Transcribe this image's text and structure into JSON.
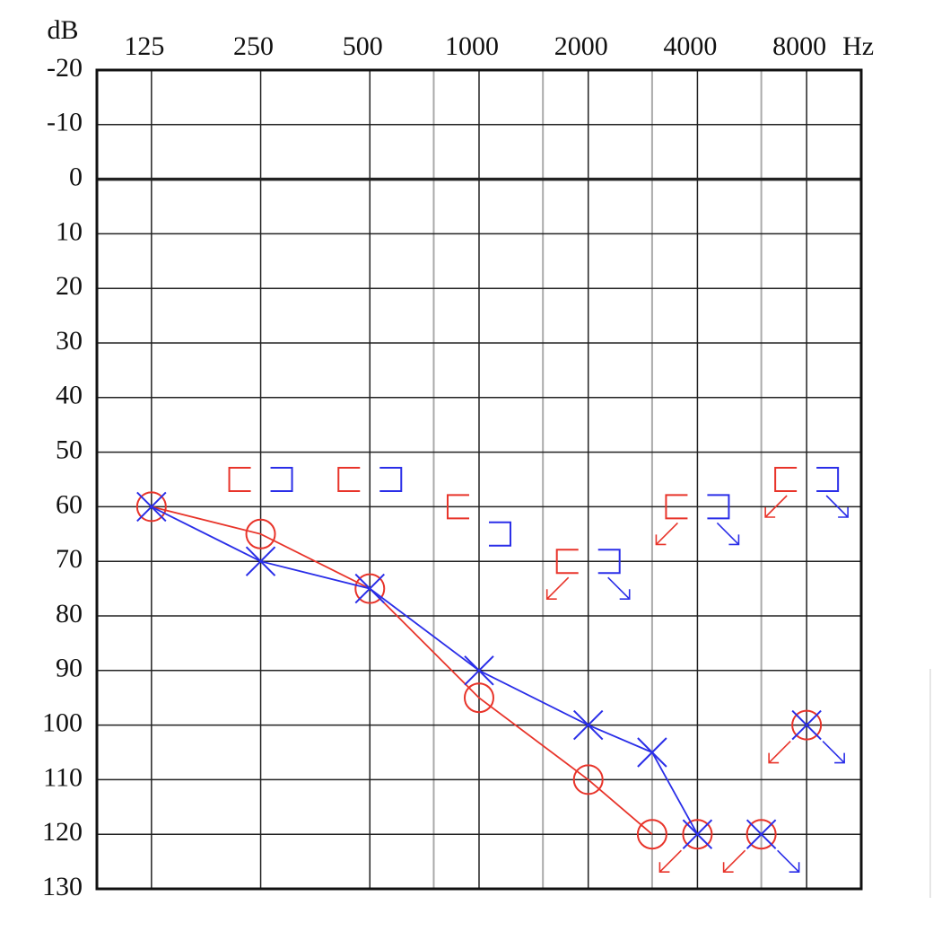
{
  "chart_data": {
    "type": "line",
    "y_label": "dB",
    "x_unit": "Hz",
    "log_x": true,
    "xlim": [
      88.4,
      11314
    ],
    "xticks": [
      125,
      250,
      500,
      1000,
      2000,
      4000,
      8000
    ],
    "x_minor_ticks": [
      750,
      1500,
      3000,
      6000
    ],
    "ylim": [
      -20,
      130
    ],
    "y_inverted": true,
    "yticks": [
      -20,
      -10,
      0,
      10,
      20,
      30,
      40,
      50,
      60,
      70,
      80,
      90,
      100,
      110,
      120,
      130
    ],
    "bold_line": 0,
    "grid": true,
    "series": [
      {
        "color": "#e8342a",
        "marker": "circle",
        "connected": true,
        "no_response": false,
        "x": [
          125,
          250,
          500,
          1000,
          2000,
          3000
        ],
        "values": [
          60,
          65,
          75,
          95,
          110,
          120
        ]
      },
      {
        "color": "#e8342a",
        "marker": "circle",
        "connected": false,
        "no_response": true,
        "x": [
          4000,
          6000,
          8000
        ],
        "values": [
          120,
          120,
          100
        ]
      },
      {
        "color": "#2a2ee8",
        "marker": "x",
        "connected": true,
        "no_response": false,
        "x": [
          125,
          250,
          500,
          1000,
          2000,
          3000,
          4000
        ],
        "values": [
          60,
          70,
          75,
          90,
          100,
          105,
          120
        ]
      },
      {
        "color": "#2a2ee8",
        "marker": "x",
        "connected": false,
        "no_response": true,
        "x": [
          6000,
          8000
        ],
        "values": [
          120,
          100
        ]
      },
      {
        "color": "#e8342a",
        "marker": "bracket-left",
        "connected": false,
        "no_response": false,
        "x": [
          250,
          500,
          1000
        ],
        "values": [
          55,
          55,
          60
        ]
      },
      {
        "color": "#e8342a",
        "marker": "bracket-left",
        "connected": false,
        "no_response": true,
        "x": [
          2000,
          4000,
          8000
        ],
        "values": [
          70,
          60,
          55
        ]
      },
      {
        "color": "#2a2ee8",
        "marker": "bracket-right",
        "connected": false,
        "no_response": false,
        "x": [
          250,
          500,
          1000
        ],
        "values": [
          55,
          55,
          65
        ]
      },
      {
        "color": "#2a2ee8",
        "marker": "bracket-right",
        "connected": false,
        "no_response": true,
        "x": [
          2000,
          4000,
          8000
        ],
        "values": [
          70,
          60,
          55
        ]
      }
    ]
  }
}
